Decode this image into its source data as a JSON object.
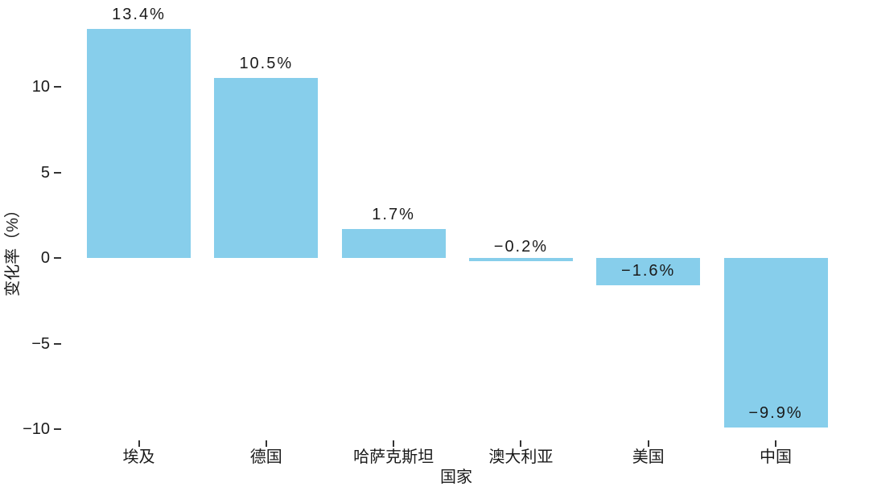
{
  "chart_data": {
    "type": "bar",
    "categories": [
      "埃及",
      "德国",
      "哈萨克斯坦",
      "澳大利亚",
      "美国",
      "中国"
    ],
    "values": [
      13.4,
      10.5,
      1.7,
      -0.2,
      -1.6,
      -9.9
    ],
    "bar_labels": [
      "13.4%",
      "10.5%",
      "1.7%",
      "−0.2%",
      "−1.6%",
      "−9.9%"
    ],
    "xlabel": "国家",
    "ylabel": "变化率（%）",
    "yticks": [
      10,
      5,
      0,
      -5,
      -10
    ],
    "ytick_labels": [
      "10",
      "5",
      "0",
      "−5",
      "−10"
    ],
    "ylim": [
      -10.5,
      14
    ],
    "grid": false,
    "legend_position": "none",
    "colors": {
      "bar": "#87CEEB",
      "text": "#1a1a1a",
      "tick": "#333333",
      "background": "#ffffff"
    }
  }
}
